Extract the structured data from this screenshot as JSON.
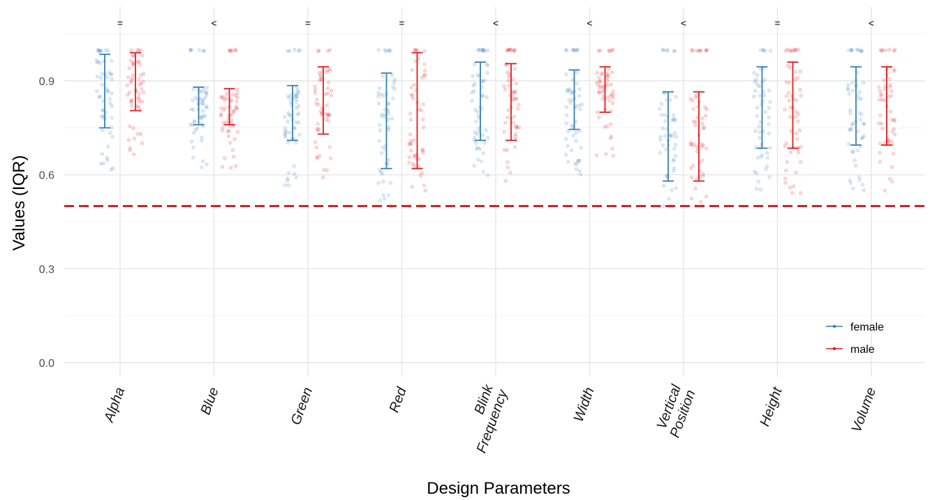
{
  "chart_data": {
    "type": "errorbar",
    "xlabel": "Design Parameters",
    "ylabel": "Values (IQR)",
    "ylim": [
      -0.05,
      1.07
    ],
    "yticks": [
      0.0,
      0.3,
      0.6,
      0.9
    ],
    "ytick_labels": [
      "0.0",
      "0.3",
      "0.6",
      "0.9"
    ],
    "categories": [
      "Alpha",
      "Blue",
      "Green",
      "Red",
      "Blink Frequency",
      "Width",
      "Vertical Position",
      "Height",
      "Volume"
    ],
    "category_labels": [
      [
        "Alpha"
      ],
      [
        "Blue"
      ],
      [
        "Green"
      ],
      [
        "Red"
      ],
      [
        "Blink",
        "Frequency"
      ],
      [
        "Width"
      ],
      [
        "Vertical",
        "Position"
      ],
      [
        "Height"
      ],
      [
        "Volume"
      ]
    ],
    "significance": [
      "=",
      "<",
      "=",
      "=",
      "<",
      "<",
      "<",
      "=",
      "<"
    ],
    "reference_line": {
      "y": 0.5,
      "style": "dashed",
      "color": "#e41a1c"
    },
    "grid": true,
    "legend_position": "bottom-right",
    "series": [
      {
        "name": "female",
        "color": "#377eb8",
        "lower": [
          0.75,
          0.76,
          0.71,
          0.62,
          0.71,
          0.745,
          0.58,
          0.685,
          0.695
        ],
        "upper": [
          0.985,
          0.88,
          0.885,
          0.925,
          0.96,
          0.935,
          0.865,
          0.945,
          0.945
        ]
      },
      {
        "name": "male",
        "color": "#e41a1c",
        "lower": [
          0.805,
          0.76,
          0.73,
          0.62,
          0.71,
          0.8,
          0.58,
          0.685,
          0.695
        ],
        "upper": [
          0.99,
          0.875,
          0.945,
          0.99,
          0.955,
          0.945,
          0.865,
          0.96,
          0.945
        ]
      }
    ]
  }
}
